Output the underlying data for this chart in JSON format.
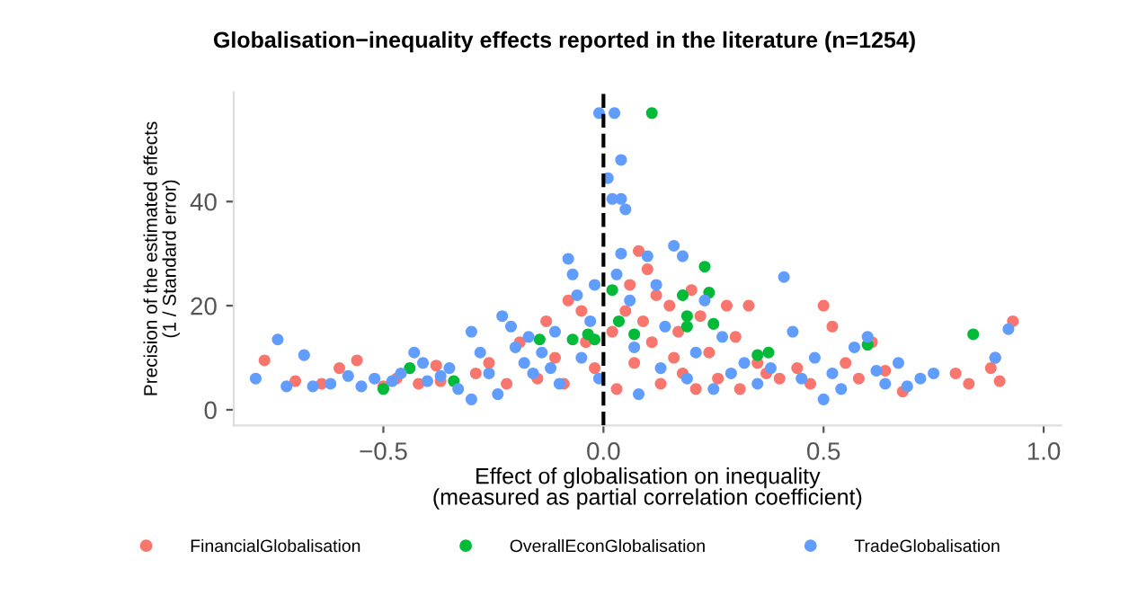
{
  "chart_data": {
    "type": "scatter",
    "title": "Globalisation−inequality effects reported in the literature (n=1254)",
    "xlabel": "Effect of globalisation on inequality\n(measured as partial correlation coefficient)",
    "ylabel": "Precision of the estimated effects\n(1 / Standard error)",
    "xlim": [
      -0.84,
      1.04
    ],
    "ylim": [
      -3,
      61
    ],
    "xticks": [
      {
        "value": -0.5,
        "label": "−0.5"
      },
      {
        "value": 0,
        "label": "0.0"
      },
      {
        "value": 0.5,
        "label": "0.5"
      },
      {
        "value": 1.0,
        "label": "1.0"
      }
    ],
    "yticks": [
      0,
      20,
      40
    ],
    "grid": false,
    "legend": "bottom",
    "marker": "circle",
    "ref_lines": [
      {
        "axis": "x",
        "value": 0,
        "color": "#000000",
        "line_style": "dashed"
      }
    ],
    "series": [
      {
        "name": "FinancialGlobalisation",
        "color": "#f8766d",
        "x": [
          -0.77,
          -0.7,
          -0.64,
          -0.6,
          -0.56,
          -0.5,
          -0.47,
          -0.42,
          -0.38,
          -0.37,
          -0.29,
          -0.26,
          -0.22,
          -0.19,
          -0.15,
          -0.13,
          -0.11,
          -0.09,
          -0.08,
          -0.05,
          -0.04,
          -0.02,
          0.02,
          0.03,
          0.05,
          0.06,
          0.07,
          0.08,
          0.09,
          0.1,
          0.11,
          0.12,
          0.13,
          0.15,
          0.16,
          0.17,
          0.18,
          0.2,
          0.21,
          0.22,
          0.24,
          0.26,
          0.28,
          0.3,
          0.31,
          0.33,
          0.35,
          0.37,
          0.4,
          0.44,
          0.47,
          0.5,
          0.52,
          0.55,
          0.58,
          0.61,
          0.64,
          0.68,
          0.8,
          0.83,
          0.88,
          0.89,
          0.9,
          0.93
        ],
        "values": [
          9.5,
          5.5,
          5,
          8,
          9.5,
          4.5,
          6,
          5,
          8.5,
          5.5,
          7,
          9,
          5,
          13,
          6,
          17,
          10,
          5,
          21,
          19,
          13,
          8,
          15,
          4,
          19,
          24,
          9,
          30.5,
          17,
          27,
          13,
          22,
          5,
          20,
          10,
          15,
          7,
          23,
          4,
          18,
          11,
          6,
          20,
          14,
          4,
          20,
          9,
          7,
          6,
          8,
          5,
          20,
          16,
          9,
          6,
          13,
          7.5,
          3.5,
          7,
          5,
          8,
          10,
          5.5,
          17
        ]
      },
      {
        "name": "OverallEconGlobalisation",
        "color": "#00ba38",
        "x": [
          0.11,
          0.23,
          0.24,
          0.18,
          0.19,
          0.19,
          0.035,
          0.07,
          -0.035,
          -0.02,
          -0.07,
          -0.145,
          0.35,
          0.375,
          0.25,
          0.6,
          0.84,
          -0.44,
          -0.5,
          -0.34,
          0.02
        ],
        "values": [
          57,
          27.5,
          22.5,
          22,
          18,
          16,
          17,
          14.5,
          14.5,
          13.5,
          13.5,
          13.5,
          10.5,
          11,
          16.5,
          12.5,
          14.5,
          8,
          4,
          5.5,
          23
        ]
      },
      {
        "name": "TradeGlobalisation",
        "color": "#619cff",
        "x": [
          -0.79,
          -0.74,
          -0.72,
          -0.68,
          -0.66,
          -0.62,
          -0.58,
          -0.55,
          -0.52,
          -0.48,
          -0.46,
          -0.43,
          -0.41,
          -0.4,
          -0.37,
          -0.35,
          -0.33,
          -0.3,
          -0.3,
          -0.28,
          -0.26,
          -0.24,
          -0.23,
          -0.21,
          -0.2,
          -0.18,
          -0.17,
          -0.16,
          -0.14,
          -0.12,
          -0.11,
          -0.1,
          -0.08,
          -0.07,
          -0.06,
          -0.05,
          -0.03,
          -0.02,
          -0.01,
          -0.01,
          0.01,
          0.02,
          0.025,
          0.04,
          0.04,
          0.05,
          0.04,
          0.03,
          0.06,
          0.07,
          0.08,
          0.1,
          0.12,
          0.13,
          0.14,
          0.16,
          0.18,
          0.19,
          0.21,
          0.23,
          0.25,
          0.27,
          0.29,
          0.32,
          0.35,
          0.38,
          0.41,
          0.43,
          0.45,
          0.48,
          0.5,
          0.52,
          0.54,
          0.57,
          0.6,
          0.62,
          0.64,
          0.67,
          0.69,
          0.72,
          0.75,
          0.89,
          0.92
        ],
        "values": [
          6,
          13.5,
          4.5,
          10.5,
          4.5,
          5,
          6.5,
          4.5,
          6,
          5.5,
          7,
          11,
          9,
          5.5,
          6.5,
          8,
          4,
          2,
          15,
          11,
          7,
          3,
          18,
          16,
          12,
          9,
          14,
          7,
          11,
          8,
          15,
          5,
          29,
          26,
          22,
          10,
          17,
          24,
          57,
          6,
          44.5,
          40.5,
          57,
          48,
          40.5,
          38.5,
          30,
          26,
          21,
          12,
          3,
          29.5,
          24,
          8,
          16,
          31.5,
          29.5,
          6,
          11,
          21,
          4,
          14,
          7,
          9,
          5,
          8,
          25.5,
          15,
          6,
          10,
          2,
          7,
          4,
          12,
          14,
          7.5,
          5,
          9,
          4.5,
          6,
          7,
          10,
          15.5
        ]
      }
    ]
  }
}
